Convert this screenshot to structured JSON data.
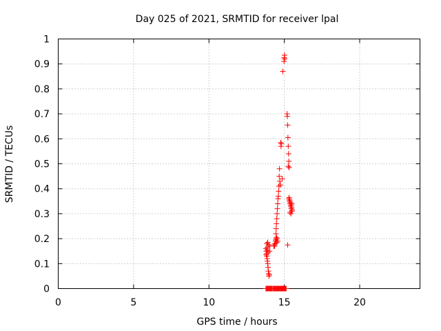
{
  "chart_data": {
    "type": "scatter",
    "title": "Day 025 of 2021, SRMTID for receiver lpal",
    "xlabel": "GPS time / hours",
    "ylabel": "SRMTID / TECUs",
    "xlim": [
      0,
      24
    ],
    "ylim": [
      0,
      1
    ],
    "xticks": [
      0,
      5,
      10,
      15,
      20
    ],
    "xtick_labels": [
      "0",
      "5",
      "10",
      "15",
      "20"
    ],
    "yticks": [
      0,
      0.1,
      0.2,
      0.3,
      0.4,
      0.5,
      0.6,
      0.7,
      0.8,
      0.9,
      1
    ],
    "ytick_labels": [
      "0",
      "0.1",
      "0.2",
      "0.3",
      "0.4",
      "0.5",
      "0.6",
      "0.7",
      "0.8",
      "0.9",
      "1"
    ],
    "grid": true,
    "marker": "+",
    "marker_color": "#ff0000",
    "series": [
      {
        "name": "SRMTID",
        "x": [
          13.78,
          13.82,
          13.86,
          13.9,
          13.94,
          13.98,
          14.02,
          14.06,
          14.1,
          14.14,
          14.18,
          14.24,
          14.28,
          14.32,
          14.36,
          14.4,
          14.44,
          14.48,
          14.52,
          14.56,
          14.6,
          14.64,
          14.68,
          14.72,
          14.76,
          14.8,
          14.84,
          14.88,
          14.92,
          14.96,
          15.0,
          15.04,
          15.08,
          15.12,
          13.78,
          13.8,
          13.82,
          13.84,
          13.86,
          13.88,
          13.9,
          13.92,
          13.94,
          13.96,
          13.98,
          14.0,
          14.02,
          14.04,
          13.84,
          13.9,
          13.96,
          13.86,
          13.92,
          13.8,
          13.88,
          14.3,
          14.34,
          14.38,
          14.42,
          14.46,
          14.5,
          14.36,
          14.4,
          14.44,
          14.48,
          14.52,
          14.56,
          14.44,
          14.46,
          14.48,
          14.5,
          14.52,
          14.54,
          14.56,
          14.58,
          14.6,
          14.62,
          14.64,
          14.66,
          14.68,
          14.7,
          14.74,
          14.86,
          14.9,
          14.98,
          14.99,
          15.01,
          15.02,
          14.76,
          14.78,
          14.8,
          15.18,
          15.2,
          15.22,
          15.24,
          15.26,
          15.28,
          15.3,
          15.32,
          15.26,
          15.3,
          15.34,
          15.38,
          15.42,
          15.46,
          15.5,
          15.36,
          15.4,
          15.44,
          15.48,
          15.52,
          15.32,
          15.38,
          15.44,
          15.5,
          15.22
        ],
        "y": [
          0,
          0,
          0,
          0,
          0,
          0,
          0,
          0,
          0,
          0,
          0,
          0,
          0,
          0,
          0,
          0,
          0,
          0,
          0,
          0,
          0,
          0,
          0,
          0,
          0,
          0,
          0,
          0,
          0,
          0,
          0,
          0,
          0,
          0,
          0.16,
          0.15,
          0.14,
          0.13,
          0.12,
          0.11,
          0.1,
          0.085,
          0.07,
          0.06,
          0.05,
          0.055,
          0.15,
          0.17,
          0.18,
          0.185,
          0.175,
          0.165,
          0.145,
          0.135,
          0.155,
          0.17,
          0.175,
          0.18,
          0.19,
          0.2,
          0.185,
          0.17,
          0.18,
          0.195,
          0.205,
          0.2,
          0.19,
          0.22,
          0.24,
          0.26,
          0.28,
          0.3,
          0.32,
          0.34,
          0.36,
          0.37,
          0.39,
          0.41,
          0.45,
          0.48,
          0.43,
          0.415,
          0.44,
          0.87,
          0.91,
          0.925,
          0.935,
          0.92,
          0.585,
          0.57,
          0.58,
          0.7,
          0.69,
          0.655,
          0.605,
          0.57,
          0.54,
          0.51,
          0.485,
          0.49,
          0.36,
          0.35,
          0.34,
          0.33,
          0.32,
          0.31,
          0.355,
          0.345,
          0.335,
          0.325,
          0.315,
          0.365,
          0.305,
          0.3,
          0.34,
          0.175
        ]
      }
    ]
  }
}
